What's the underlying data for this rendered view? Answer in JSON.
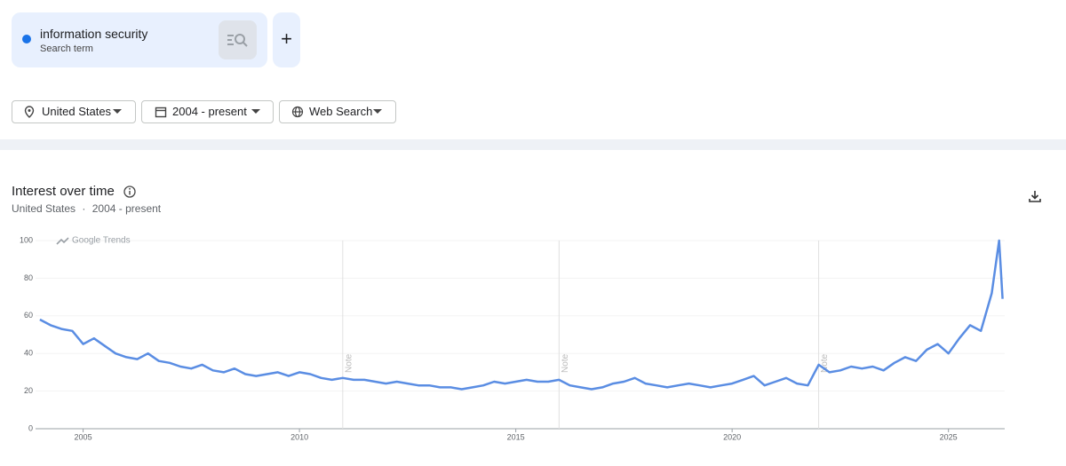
{
  "search_card": {
    "subtitle": "Search term",
    "add_button": "+"
  },
  "filters": [
    "United States",
    "2004 - present",
    "Web Search"
  ],
  "panel": {
    "title": "Interest over time",
    "subtitle": [
      "United States",
      "·",
      "2004 - present"
    ]
  },
  "chart_data": {
    "type": "line",
    "watermark": "Google Trends",
    "x": [
      2004.0,
      2004.25,
      2004.5,
      2004.75,
      2005.0,
      2005.25,
      2005.5,
      2005.75,
      2006.0,
      2006.25,
      2006.5,
      2006.75,
      2007.0,
      2007.25,
      2007.5,
      2007.75,
      2008.0,
      2008.25,
      2008.5,
      2008.75,
      2009.0,
      2009.25,
      2009.5,
      2009.75,
      2010.0,
      2010.25,
      2010.5,
      2010.75,
      2011.0,
      2011.25,
      2011.5,
      2011.75,
      2012.0,
      2012.25,
      2012.5,
      2012.75,
      2013.0,
      2013.25,
      2013.5,
      2013.75,
      2014.0,
      2014.25,
      2014.5,
      2014.75,
      2015.0,
      2015.25,
      2015.5,
      2015.75,
      2016.0,
      2016.25,
      2016.5,
      2016.75,
      2017.0,
      2017.25,
      2017.5,
      2017.75,
      2018.0,
      2018.25,
      2018.5,
      2018.75,
      2019.0,
      2019.25,
      2019.5,
      2019.75,
      2020.0,
      2020.25,
      2020.5,
      2020.75,
      2021.0,
      2021.25,
      2021.5,
      2021.75,
      2022.0,
      2022.25,
      2022.5,
      2022.75,
      2023.0,
      2023.25,
      2023.5,
      2023.75,
      2024.0,
      2024.25,
      2024.5,
      2024.75,
      2025.0,
      2025.25,
      2025.5,
      2025.75,
      2026.0,
      2026.17,
      2026.25
    ],
    "series": [
      {
        "name": "information security",
        "color": "#5a8de3",
        "values": [
          58,
          55,
          53,
          52,
          45,
          48,
          44,
          40,
          38,
          37,
          40,
          36,
          35,
          33,
          32,
          34,
          31,
          30,
          32,
          29,
          28,
          29,
          30,
          28,
          30,
          29,
          27,
          26,
          27,
          26,
          26,
          25,
          24,
          25,
          24,
          23,
          23,
          22,
          22,
          21,
          22,
          23,
          25,
          24,
          25,
          26,
          25,
          25,
          26,
          23,
          22,
          21,
          22,
          24,
          25,
          27,
          24,
          23,
          22,
          23,
          24,
          23,
          22,
          23,
          24,
          26,
          28,
          23,
          25,
          27,
          24,
          23,
          34,
          30,
          31,
          33,
          32,
          33,
          31,
          35,
          38,
          36,
          42,
          45,
          40,
          48,
          55,
          52,
          72,
          100,
          69
        ]
      }
    ],
    "xlim": [
      2003.9,
      2026.3
    ],
    "xticks": [
      2005,
      2010,
      2015,
      2020,
      2025
    ],
    "ylim": [
      0,
      100
    ],
    "yticks": [
      0,
      20,
      40,
      60,
      80,
      100
    ],
    "grid": true,
    "notes": [
      {
        "x": 2011,
        "label": "Note"
      },
      {
        "x": 2016,
        "label": "Note"
      },
      {
        "x": 2022,
        "label": "Note"
      }
    ]
  }
}
